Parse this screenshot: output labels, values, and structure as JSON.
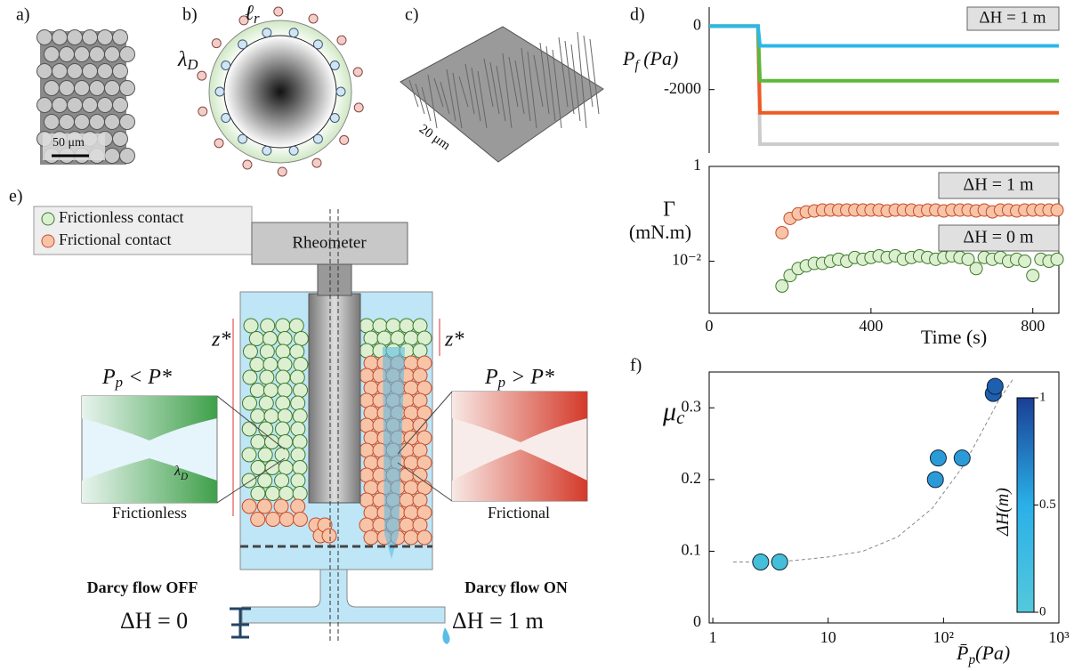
{
  "panel_labels": {
    "a": "a)",
    "b": "b)",
    "c": "c)",
    "d": "d)",
    "e": "e)",
    "f": "f)"
  },
  "panel_a": {
    "scale_bar": "50 μm"
  },
  "panel_b": {
    "lambda": [
      "λ",
      "D"
    ],
    "ell": [
      "ℓ",
      "r"
    ]
  },
  "panel_c": {
    "scale": "20 μm"
  },
  "panel_e": {
    "legend": [
      "Frictionless contact",
      "Frictional contact"
    ],
    "rheometer": "Rheometer",
    "z_left": "z*",
    "z_right": "z*",
    "left_condition": [
      "P",
      "p",
      " < P*"
    ],
    "right_condition": [
      "P",
      "p",
      " > P*"
    ],
    "inset_lambda": [
      "λ",
      "D"
    ],
    "left_caption": "Frictionless",
    "right_caption": "Frictional",
    "flow_off": "Darcy flow OFF",
    "flow_on": "Darcy flow ON",
    "dh_left": "ΔH = 0",
    "dh_right": "ΔH = 1 m"
  },
  "chart_data": [
    {
      "type": "line",
      "y_label": [
        "P",
        "f",
        " (Pa)"
      ],
      "legend_label": "ΔH = 1 m",
      "xlim": [
        0,
        860
      ],
      "ylim": [
        -4000,
        600
      ],
      "yticks": [
        0,
        -2000
      ],
      "series": [
        {
          "color": "#cccccc",
          "x": [
            0,
            120,
            125,
            860
          ],
          "values": [
            0,
            0,
            -3720,
            -3720
          ]
        },
        {
          "color": "#ee5a24",
          "x": [
            0,
            120,
            125,
            860
          ],
          "values": [
            0,
            0,
            -2730,
            -2730
          ]
        },
        {
          "color": "#5cb83a",
          "x": [
            0,
            120,
            125,
            860
          ],
          "values": [
            0,
            0,
            -1720,
            -1720
          ]
        },
        {
          "color": "#2ab8e8",
          "x": [
            0,
            120,
            125,
            860
          ],
          "values": [
            0,
            0,
            -620,
            -620
          ]
        }
      ]
    },
    {
      "type": "scatter",
      "y_label": "Γ",
      "y_unit": "(mN.m)",
      "x_label": "Time (s)",
      "xlim": [
        0,
        860
      ],
      "xticks": [
        0,
        400,
        800
      ],
      "ylim": [
        0.0008,
        1
      ],
      "yscale": "log",
      "yticks": [
        1,
        {
          "value": 0.01,
          "label": "10⁻²"
        }
      ],
      "annotations": [
        "ΔH = 1 m",
        "ΔH = 0 m"
      ],
      "x": [
        180,
        200,
        220,
        240,
        260,
        280,
        300,
        320,
        340,
        360,
        380,
        400,
        420,
        440,
        460,
        480,
        500,
        520,
        540,
        560,
        580,
        600,
        620,
        640,
        660,
        680,
        700,
        720,
        740,
        760,
        780,
        800,
        820,
        840,
        860
      ],
      "series": [
        {
          "color": "#f7c4a8",
          "edge": "#c84b2a",
          "values": [
            0.04,
            0.08,
            0.1,
            0.11,
            0.115,
            0.12,
            0.12,
            0.12,
            0.12,
            0.12,
            0.12,
            0.12,
            0.12,
            0.115,
            0.12,
            0.12,
            0.12,
            0.115,
            0.12,
            0.12,
            0.115,
            0.12,
            0.12,
            0.12,
            0.115,
            0.12,
            0.11,
            0.12,
            0.12,
            0.115,
            0.12,
            0.12,
            0.12,
            0.12,
            0.12
          ]
        },
        {
          "color": "#dcefd0",
          "edge": "#3d7a2a",
          "values": [
            0.003,
            0.005,
            0.007,
            0.008,
            0.009,
            0.009,
            0.01,
            0.011,
            0.01,
            0.012,
            0.011,
            0.012,
            0.013,
            0.012,
            0.013,
            0.011,
            0.012,
            0.013,
            0.012,
            0.011,
            0.012,
            0.013,
            0.012,
            0.011,
            0.007,
            0.012,
            0.011,
            0.012,
            0.01,
            0.011,
            0.01,
            0.005,
            0.011,
            0.01,
            0.011
          ]
        }
      ]
    },
    {
      "type": "scatter",
      "x_label": [
        "P̄",
        "p",
        "(Pa)"
      ],
      "y_label": [
        "μ",
        "c"
      ],
      "xscale": "log",
      "xlim": [
        0.93,
        1000
      ],
      "xticks": [
        1,
        10,
        {
          "value": 100,
          "label": "10²"
        },
        {
          "value": 1000,
          "label": "10³"
        }
      ],
      "ylim": [
        0,
        0.35
      ],
      "yticks": [
        0,
        0.1,
        0.2,
        0.3
      ],
      "x": [
        2.6,
        3.8,
        85,
        90,
        145,
        270,
        280
      ],
      "values": [
        0.085,
        0.085,
        0.2,
        0.23,
        0.23,
        0.32,
        0.33
      ],
      "colors": [
        "#45bfd9",
        "#45bfd9",
        "#2a9bd8",
        "#2a9bd8",
        "#2a9bd8",
        "#1f5fb0",
        "#1f5fb0"
      ],
      "fit": {
        "x": [
          1.5,
          3,
          5,
          10,
          20,
          40,
          80,
          150,
          300,
          400
        ],
        "values": [
          0.085,
          0.085,
          0.087,
          0.092,
          0.1,
          0.12,
          0.16,
          0.22,
          0.31,
          0.34
        ]
      },
      "colorbar": {
        "label": [
          "ΔH",
          "(m)"
        ],
        "lim": [
          0,
          1
        ],
        "ticks": [
          0,
          0.5,
          1
        ],
        "colors": [
          "#55c8dc",
          "#2ab0e8",
          "#1a3f95"
        ]
      }
    }
  ]
}
